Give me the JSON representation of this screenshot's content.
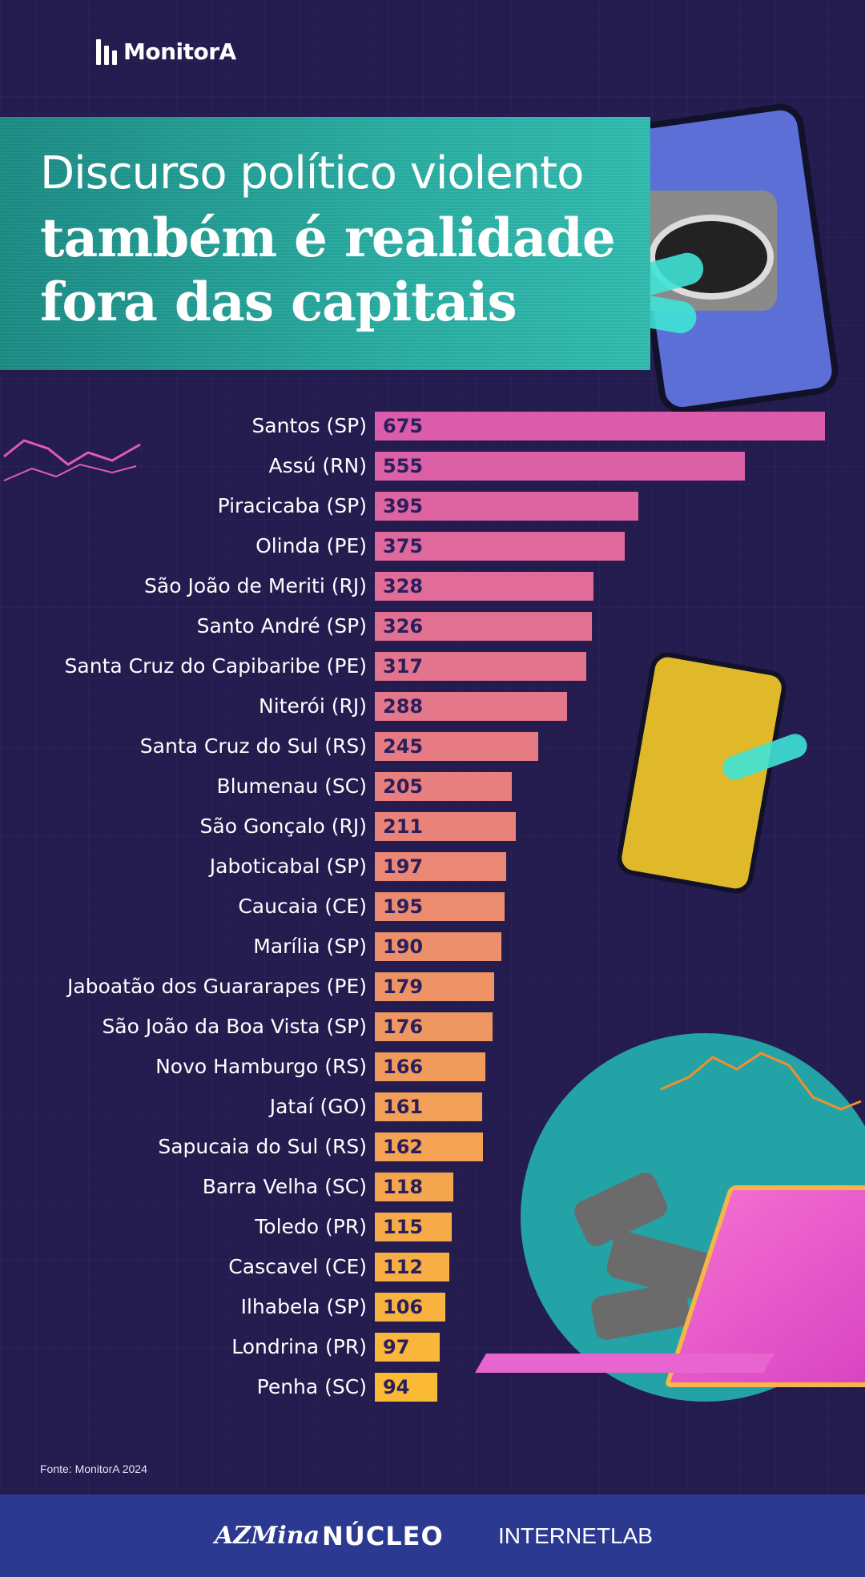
{
  "brand": {
    "logo_text": "MonitorA"
  },
  "title": {
    "line1": "Discurso político violento",
    "line2": "também é realidade",
    "line3": "fora das capitais"
  },
  "chart_data": {
    "type": "bar",
    "orientation": "horizontal",
    "categories": [
      "Santos (SP)",
      "Assú (RN)",
      "Piracicaba (SP)",
      "Olinda (PE)",
      "São João de Meriti (RJ)",
      "Santo André (SP)",
      "Santa Cruz do Capibaribe (PE)",
      "Niterói (RJ)",
      "Santa Cruz do Sul (RS)",
      "Blumenau (SC)",
      "São Gonçalo (RJ)",
      "Jaboticabal (SP)",
      "Caucaia (CE)",
      "Marília (SP)",
      "Jaboatão dos Guararapes (PE)",
      "São João da Boa Vista (SP)",
      "Novo Hamburgo (RS)",
      "Jataí (GO)",
      "Sapucaia do Sul (RS)",
      "Barra Velha (SC)",
      "Toledo (PR)",
      "Cascavel (CE)",
      "Ilhabela (SP)",
      "Londrina (PR)",
      "Penha (SC)"
    ],
    "values": [
      675,
      555,
      395,
      375,
      328,
      326,
      317,
      288,
      245,
      205,
      211,
      197,
      195,
      190,
      179,
      176,
      166,
      161,
      162,
      118,
      115,
      112,
      106,
      97,
      94
    ],
    "value_labels": [
      "675",
      "555",
      "395",
      "375",
      "328",
      "326",
      "317",
      "288",
      "245",
      "205",
      "211",
      "197",
      "195",
      "190",
      "179",
      "176",
      "166",
      "161",
      "162",
      "118",
      "115",
      "112",
      "106",
      "97",
      "94"
    ],
    "colors": {
      "top": "#db5cab",
      "bottom": "#fbba35"
    },
    "grid": false,
    "legend": "none",
    "title": "",
    "xlabel": "",
    "ylabel": ""
  },
  "source": "Fonte: MonitorA 2024",
  "footer": {
    "partners": [
      "AZMina",
      "NÚCLEO",
      "INTERNETLAB"
    ]
  }
}
